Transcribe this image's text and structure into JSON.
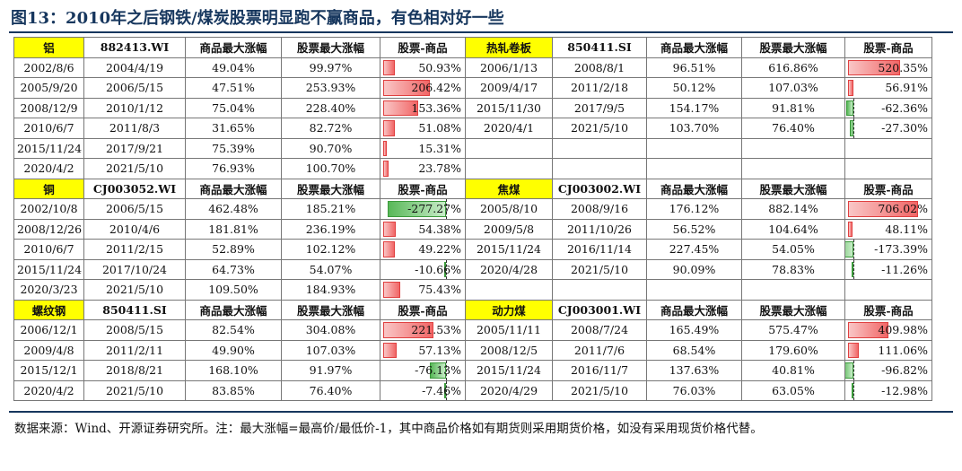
{
  "title": "图13：2010年之后钢铁/煤炭股票明显跑不赢商品，有色相对好一些",
  "note": "数据来源：Wind、开源证券研究所。注：最大涨幅=最高价/最低价-1，其中商品价格如有期货则采用期货价格，如没有采用现货价格代替。",
  "headers": [
    "商品最大涨幅",
    "股票最大涨幅",
    "股票-商品"
  ],
  "bar_colors": {
    "positive": "#f16666",
    "negative": "#58b858"
  },
  "blocks": [
    {
      "left": {
        "name": "铝",
        "code": "882413.WI",
        "rows": [
          {
            "d1": "2002/8/6",
            "d2": "2004/4/19",
            "c": "49.04%",
            "s": "99.97%",
            "diff": "50.93%",
            "v": 50.93
          },
          {
            "d1": "2005/9/20",
            "d2": "2006/5/15",
            "c": "47.51%",
            "s": "253.93%",
            "diff": "206.42%",
            "v": 206.42
          },
          {
            "d1": "2008/12/9",
            "d2": "2010/1/12",
            "c": "75.04%",
            "s": "228.40%",
            "diff": "153.36%",
            "v": 153.36
          },
          {
            "d1": "2010/6/7",
            "d2": "2011/8/3",
            "c": "31.65%",
            "s": "82.72%",
            "diff": "51.08%",
            "v": 51.08
          },
          {
            "d1": "2015/11/24",
            "d2": "2017/9/21",
            "c": "75.39%",
            "s": "90.70%",
            "diff": "15.31%",
            "v": 15.31
          },
          {
            "d1": "2020/4/2",
            "d2": "2021/5/10",
            "c": "76.93%",
            "s": "100.70%",
            "diff": "23.78%",
            "v": 23.78
          }
        ]
      },
      "right": {
        "name": "热轧卷板",
        "code": "850411.SI",
        "rows": [
          {
            "d1": "2006/1/13",
            "d2": "2008/8/1",
            "c": "96.51%",
            "s": "616.86%",
            "diff": "520.35%",
            "v": 520.35
          },
          {
            "d1": "2009/4/17",
            "d2": "2011/2/18",
            "c": "50.12%",
            "s": "107.03%",
            "diff": "56.91%",
            "v": 56.91
          },
          {
            "d1": "2015/11/30",
            "d2": "2017/9/5",
            "c": "154.17%",
            "s": "91.81%",
            "diff": "-62.36%",
            "v": -62.36
          },
          {
            "d1": "2020/4/1",
            "d2": "2021/5/10",
            "c": "103.70%",
            "s": "76.40%",
            "diff": "-27.30%",
            "v": -27.3
          },
          {
            "d1": "",
            "d2": "",
            "c": "",
            "s": "",
            "diff": "",
            "v": null
          },
          {
            "d1": "",
            "d2": "",
            "c": "",
            "s": "",
            "diff": "",
            "v": null
          }
        ]
      }
    },
    {
      "left": {
        "name": "铜",
        "code": "CJ003052.WI",
        "rows": [
          {
            "d1": "2002/10/8",
            "d2": "2006/5/15",
            "c": "462.48%",
            "s": "185.21%",
            "diff": "-277.27%",
            "v": -277.27
          },
          {
            "d1": "2008/12/26",
            "d2": "2010/4/6",
            "c": "181.81%",
            "s": "236.19%",
            "diff": "54.38%",
            "v": 54.38
          },
          {
            "d1": "2010/6/7",
            "d2": "2011/2/15",
            "c": "52.89%",
            "s": "102.12%",
            "diff": "49.22%",
            "v": 49.22
          },
          {
            "d1": "2015/11/24",
            "d2": "2017/10/24",
            "c": "64.73%",
            "s": "54.07%",
            "diff": "-10.66%",
            "v": -10.66
          },
          {
            "d1": "2020/3/23",
            "d2": "2021/5/10",
            "c": "109.50%",
            "s": "184.93%",
            "diff": "75.43%",
            "v": 75.43
          }
        ]
      },
      "right": {
        "name": "焦煤",
        "code": "CJ003002.WI",
        "rows": [
          {
            "d1": "2005/8/10",
            "d2": "2008/9/16",
            "c": "176.12%",
            "s": "882.14%",
            "diff": "706.02%",
            "v": 706.02
          },
          {
            "d1": "2009/5/8",
            "d2": "2011/10/26",
            "c": "56.52%",
            "s": "104.64%",
            "diff": "48.11%",
            "v": 48.11
          },
          {
            "d1": "2015/11/24",
            "d2": "2016/11/14",
            "c": "227.45%",
            "s": "54.05%",
            "diff": "-173.39%",
            "v": -173.39
          },
          {
            "d1": "2020/4/28",
            "d2": "2021/5/10",
            "c": "90.09%",
            "s": "78.83%",
            "diff": "-11.26%",
            "v": -11.26
          },
          {
            "d1": "",
            "d2": "",
            "c": "",
            "s": "",
            "diff": "",
            "v": null
          }
        ]
      }
    },
    {
      "left": {
        "name": "螺纹钢",
        "code": "850411.SI",
        "rows": [
          {
            "d1": "2006/12/1",
            "d2": "2008/5/15",
            "c": "82.54%",
            "s": "304.08%",
            "diff": "221.53%",
            "v": 221.53
          },
          {
            "d1": "2009/4/8",
            "d2": "2011/2/11",
            "c": "49.90%",
            "s": "107.03%",
            "diff": "57.13%",
            "v": 57.13
          },
          {
            "d1": "2015/12/1",
            "d2": "2018/8/21",
            "c": "168.10%",
            "s": "91.97%",
            "diff": "-76.13%",
            "v": -76.13
          },
          {
            "d1": "2020/4/2",
            "d2": "2021/5/10",
            "c": "83.85%",
            "s": "76.40%",
            "diff": "-7.46%",
            "v": -7.46
          }
        ]
      },
      "right": {
        "name": "动力煤",
        "code": "CJ003001.WI",
        "rows": [
          {
            "d1": "2005/11/11",
            "d2": "2008/7/24",
            "c": "165.49%",
            "s": "575.47%",
            "diff": "409.98%",
            "v": 409.98
          },
          {
            "d1": "2008/12/5",
            "d2": "2011/7/6",
            "c": "68.54%",
            "s": "179.60%",
            "diff": "111.06%",
            "v": 111.06
          },
          {
            "d1": "2015/11/24",
            "d2": "2016/11/7",
            "c": "137.63%",
            "s": "40.81%",
            "diff": "-96.82%",
            "v": -96.82
          },
          {
            "d1": "2020/4/29",
            "d2": "2021/5/10",
            "c": "76.03%",
            "s": "63.05%",
            "diff": "-12.98%",
            "v": -12.98
          }
        ]
      }
    }
  ]
}
